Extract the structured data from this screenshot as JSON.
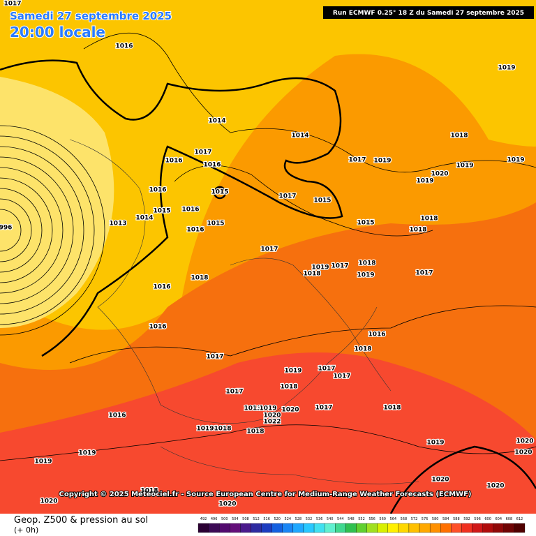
{
  "header": {
    "date": "Samedi 27 septembre 2025",
    "time": "20:00 locale",
    "run": "Run ECMWF 0.25° 18 Z du Samedi 27 septembre 2025"
  },
  "footer": {
    "copyright": "Copyright © 2025 Meteociel.fr - Source European Centre for Medium-Range Weather Forecasts (ECMWF)",
    "title": "Geop. Z500 & pression au sol",
    "step": "(+ 0h)"
  },
  "scale": {
    "labels": [
      492,
      496,
      500,
      504,
      508,
      512,
      516,
      520,
      524,
      528,
      532,
      536,
      540,
      544,
      548,
      552,
      556,
      560,
      564,
      568,
      572,
      576,
      580,
      584,
      588,
      592,
      596,
      600,
      604,
      608,
      612
    ]
  },
  "isobars": {
    "labels": [
      "1017",
      "1016",
      "1019",
      "1014",
      "1014",
      "1018",
      "1017",
      "1016",
      "1016",
      "1017",
      "1019",
      "1020",
      "1019",
      "1019",
      "1019",
      "1016",
      "1015",
      "1017",
      "1015",
      "1015",
      "1016",
      "1014",
      "1013",
      "1015",
      "1016",
      "1015",
      "1018",
      "1018",
      "1017",
      "1019",
      "1017",
      "1018",
      "1018",
      "1019",
      "1017",
      "1018",
      "1016",
      "1016",
      "1016",
      "1018",
      "1017",
      "1019",
      "1017",
      "1017",
      "1018",
      "1017",
      "1013",
      "1019",
      "1020",
      "1017",
      "1018",
      "1016",
      "1020",
      "1022",
      "1019",
      "1018",
      "1018",
      "1019",
      "1020",
      "1020",
      "1019",
      "1019",
      "1020",
      "1020",
      "1020",
      "1020",
      "1018",
      "996"
    ]
  }
}
